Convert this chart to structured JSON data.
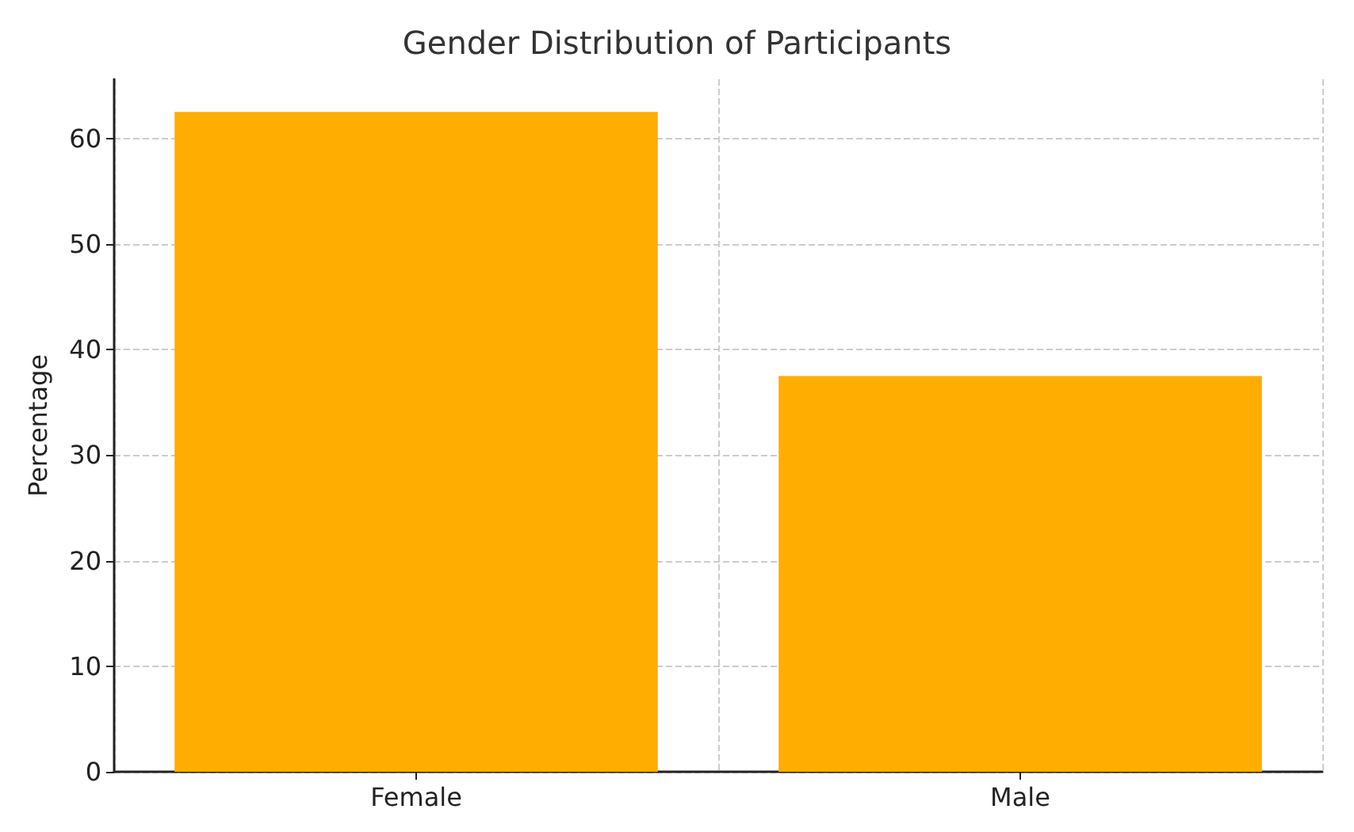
{
  "chart_data": {
    "type": "bar",
    "title": "Gender Distribution of Participants",
    "ylabel": "Percentage",
    "categories": [
      "Female",
      "Male"
    ],
    "values": [
      62.5,
      37.5
    ],
    "color": "#ffad00",
    "ylim": [
      0,
      65.6
    ],
    "yticks": [
      0,
      10,
      20,
      30,
      40,
      50,
      60
    ],
    "grid": true
  }
}
